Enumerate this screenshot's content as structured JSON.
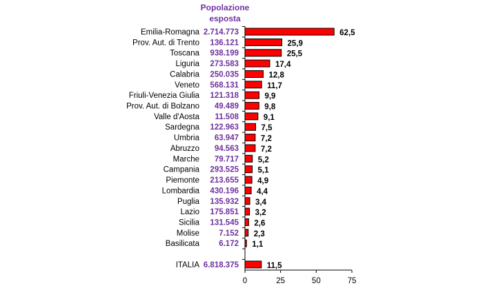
{
  "chart_data": {
    "type": "bar",
    "orientation": "horizontal",
    "column_header": [
      "Popolazione",
      "esposta"
    ],
    "categories": [
      "Emilia-Romagna",
      "Prov. Aut. di Trento",
      "Toscana",
      "Liguria",
      "Calabria",
      "Veneto",
      "Friuli-Venezia Giulia",
      "Prov. Aut. di Bolzano",
      "Valle d'Aosta",
      "Sardegna",
      "Umbria",
      "Abruzzo",
      "Marche",
      "Campania",
      "Piemonte",
      "Lombardia",
      "Puglia",
      "Lazio",
      "Sicilia",
      "Molise",
      "Basilicata",
      "ITALIA"
    ],
    "population": [
      "2.714.773",
      "136.121",
      "938.199",
      "273.583",
      "250.035",
      "568.131",
      "121.318",
      "49.489",
      "11.508",
      "122.963",
      "63.947",
      "94.563",
      "79.717",
      "293.525",
      "213.655",
      "430.196",
      "135.932",
      "175.851",
      "131.545",
      "7.152",
      "6.172",
      "6.818.375"
    ],
    "values": [
      62.5,
      25.9,
      25.5,
      17.4,
      12.8,
      11.7,
      9.9,
      9.8,
      9.1,
      7.5,
      7.2,
      7.2,
      5.2,
      5.1,
      4.9,
      4.4,
      3.4,
      3.2,
      2.6,
      2.3,
      1.1,
      11.5
    ],
    "value_labels": [
      "62,5",
      "25,9",
      "25,5",
      "17,4",
      "12,8",
      "11,7",
      "9,9",
      "9,8",
      "9,1",
      "7,5",
      "7,2",
      "7,2",
      "5,2",
      "5,1",
      "4,9",
      "4,4",
      "3,4",
      "3,2",
      "2,6",
      "2,3",
      "1,1",
      "11,5"
    ],
    "xlim": [
      0,
      75
    ],
    "xticks": [
      "0",
      "25",
      "50",
      "75"
    ],
    "bar_color": "#ff0000",
    "population_color": "#7030a0",
    "grid": false
  }
}
